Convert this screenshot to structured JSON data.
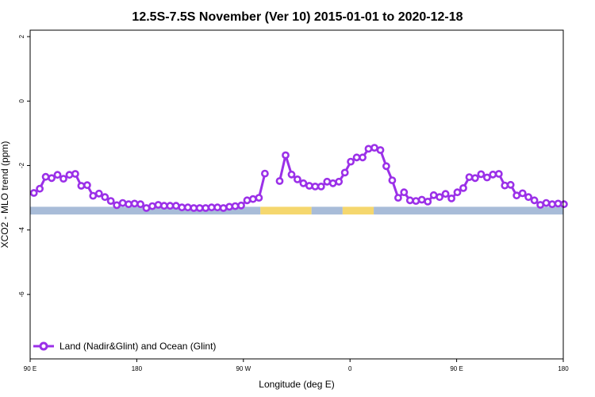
{
  "chart_data": {
    "type": "line",
    "title": "12.5S-7.5S November (Ver 10)   2015-01-01 to 2020-12-18",
    "xlabel": "Longitude (deg E)",
    "ylabel": "XCO2 - MLO trend (ppm)",
    "xlim": [
      90,
      450
    ],
    "ylim": [
      -8,
      2.2
    ],
    "x_ticks": [
      {
        "value": 90,
        "label": "90 E"
      },
      {
        "value": 162,
        "label": "180"
      },
      {
        "value": 234,
        "label": "90 W"
      },
      {
        "value": 306,
        "label": "0"
      },
      {
        "value": 378,
        "label": "90 E"
      },
      {
        "value": 450,
        "label": "180"
      }
    ],
    "y_ticks": [
      {
        "value": 2,
        "label": "2"
      },
      {
        "value": 0,
        "label": "0"
      },
      {
        "value": -2,
        "label": "-2"
      },
      {
        "value": -4,
        "label": "-4"
      },
      {
        "value": -6,
        "label": "-6"
      }
    ],
    "legend_position": "bottom-left",
    "grid": false,
    "colors": {
      "series": "#9b30e8",
      "ocean": "#a8bcd8",
      "land": "#f5d76e"
    },
    "land_mask_segments": [
      {
        "type": "ocean",
        "x0": 90,
        "x1": 245.5
      },
      {
        "type": "land",
        "x0": 245.5,
        "x1": 280
      },
      {
        "type": "ocean",
        "x0": 280,
        "x1": 301
      },
      {
        "type": "land",
        "x0": 301,
        "x1": 322
      },
      {
        "type": "ocean",
        "x0": 322,
        "x1": 450
      }
    ],
    "series": [
      {
        "name": "Land (Nadir&Glint) and Ocean (Glint)",
        "segments": [
          [
            [
              92.5,
              -2.85
            ],
            [
              96.5,
              -2.72
            ],
            [
              100.5,
              -2.35
            ],
            [
              104.5,
              -2.39
            ],
            [
              108.5,
              -2.29
            ],
            [
              112.5,
              -2.41
            ],
            [
              116.5,
              -2.29
            ],
            [
              120.5,
              -2.26
            ],
            [
              124.5,
              -2.63
            ],
            [
              128.5,
              -2.61
            ],
            [
              132.5,
              -2.94
            ],
            [
              136.5,
              -2.87
            ],
            [
              140.5,
              -2.98
            ],
            [
              144.5,
              -3.1
            ],
            [
              148.5,
              -3.23
            ],
            [
              152.5,
              -3.16
            ],
            [
              156.5,
              -3.2
            ],
            [
              160.5,
              -3.18
            ],
            [
              164.5,
              -3.2
            ],
            [
              168.5,
              -3.32
            ],
            [
              172.5,
              -3.26
            ],
            [
              176.5,
              -3.22
            ],
            [
              180.5,
              -3.25
            ],
            [
              184.5,
              -3.25
            ],
            [
              188.5,
              -3.25
            ],
            [
              192.5,
              -3.3
            ],
            [
              196.5,
              -3.3
            ],
            [
              200.5,
              -3.32
            ],
            [
              204.5,
              -3.32
            ],
            [
              208.5,
              -3.32
            ],
            [
              212.5,
              -3.3
            ],
            [
              216.5,
              -3.3
            ],
            [
              220.5,
              -3.32
            ],
            [
              224.5,
              -3.28
            ],
            [
              228.5,
              -3.26
            ],
            [
              232.5,
              -3.24
            ],
            [
              236.5,
              -3.08
            ],
            [
              240.5,
              -3.04
            ],
            [
              244.5,
              -3.0
            ],
            [
              248.5,
              -2.25
            ]
          ],
          [
            [
              258.5,
              -2.48
            ],
            [
              262.5,
              -1.68
            ],
            [
              266.5,
              -2.28
            ],
            [
              270.5,
              -2.43
            ],
            [
              274.5,
              -2.55
            ],
            [
              278.5,
              -2.63
            ],
            [
              282.5,
              -2.65
            ],
            [
              286.5,
              -2.65
            ],
            [
              290.5,
              -2.5
            ],
            [
              294.5,
              -2.55
            ],
            [
              298.5,
              -2.5
            ],
            [
              302.5,
              -2.22
            ],
            [
              306.5,
              -1.88
            ],
            [
              310.5,
              -1.75
            ],
            [
              314.5,
              -1.75
            ],
            [
              318.5,
              -1.48
            ],
            [
              322.5,
              -1.45
            ],
            [
              326.5,
              -1.52
            ],
            [
              330.5,
              -2.02
            ],
            [
              334.5,
              -2.46
            ],
            [
              338.5,
              -3.0
            ],
            [
              342.5,
              -2.83
            ],
            [
              346.5,
              -3.08
            ],
            [
              350.5,
              -3.1
            ],
            [
              354.5,
              -3.06
            ],
            [
              358.5,
              -3.12
            ],
            [
              362.5,
              -2.92
            ],
            [
              366.5,
              -2.98
            ],
            [
              370.5,
              -2.88
            ],
            [
              374.5,
              -3.02
            ],
            [
              378.5,
              -2.83
            ],
            [
              382.5,
              -2.7
            ],
            [
              386.5,
              -2.36
            ],
            [
              390.5,
              -2.39
            ],
            [
              394.5,
              -2.27
            ],
            [
              398.5,
              -2.37
            ],
            [
              402.5,
              -2.28
            ],
            [
              406.5,
              -2.26
            ],
            [
              410.5,
              -2.62
            ],
            [
              414.5,
              -2.6
            ],
            [
              418.5,
              -2.93
            ],
            [
              422.5,
              -2.86
            ],
            [
              426.5,
              -2.98
            ],
            [
              430.5,
              -3.08
            ],
            [
              434.5,
              -3.22
            ],
            [
              438.5,
              -3.16
            ],
            [
              442.5,
              -3.2
            ],
            [
              446.5,
              -3.18
            ],
            [
              450.5,
              -3.2
            ]
          ]
        ]
      }
    ]
  }
}
